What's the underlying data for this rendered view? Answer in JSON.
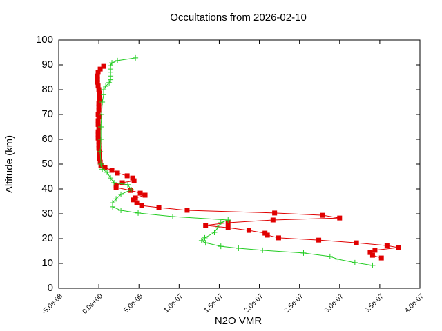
{
  "chart_data": {
    "type": "line",
    "title": "Occultations from 2026-02-10",
    "x_label": "N2O VMR",
    "y_label": "Altitude (km)",
    "xlim": [
      -5e-08,
      4e-07
    ],
    "xticks": [
      {
        "value": -5e-08,
        "label": "-5.0e-08"
      },
      {
        "value": 0,
        "label": "0.0e+00"
      },
      {
        "value": 5e-08,
        "label": "5.0e-08"
      },
      {
        "value": 1e-07,
        "label": "1.0e-07"
      },
      {
        "value": 1.5e-07,
        "label": "1.5e-07"
      },
      {
        "value": 2e-07,
        "label": "2.0e-07"
      },
      {
        "value": 2.5e-07,
        "label": "2.5e-07"
      },
      {
        "value": 3e-07,
        "label": "3.0e-07"
      },
      {
        "value": 3.5e-07,
        "label": "3.5e-07"
      },
      {
        "value": 4e-07,
        "label": "4.0e-07"
      }
    ],
    "ylim": [
      0,
      100
    ],
    "yticks": [
      0,
      10,
      20,
      30,
      40,
      50,
      60,
      70,
      80,
      90,
      100
    ],
    "grid": false,
    "series": [
      {
        "color": "#e00000",
        "marker": "square",
        "x": [
          6e-09,
          1.7e-09,
          -9e-10,
          -1.7e-09,
          -1.7e-09,
          -1.7e-09,
          -9e-10,
          0,
          9e-10,
          9e-10,
          9e-10,
          0,
          0,
          0,
          -9e-10,
          0,
          -9e-10,
          -9e-10,
          0,
          -9e-10,
          -9e-10,
          -9e-10,
          0,
          0,
          0,
          9e-10,
          9e-10,
          9e-10,
          1.7e-09,
          2.6e-09,
          7.7e-09,
          1.63e-08,
          2.32e-08,
          3.53e-08,
          4.21e-08,
          4.39e-08,
          2.92e-08,
          2.15e-08,
          2.15e-08,
          3.96e-08,
          5.16e-08,
          5.76e-08,
          4.56e-08,
          4.3e-08,
          4.73e-08,
          5.33e-08,
          7.48e-08,
          1.1e-07,
          2.19e-07,
          2.79e-07,
          3e-07,
          2.17e-07,
          1.61e-07,
          1.33e-07,
          1.61e-07,
          1.87e-07,
          2.07e-07,
          2.1e-07,
          2.24e-07,
          2.74e-07,
          3.21e-07,
          3.59e-07,
          3.73e-07,
          3.44e-07,
          3.38e-07,
          3.41e-07,
          3.52e-07
        ],
        "values": [
          89.4,
          88.3,
          87.0,
          85.5,
          84.0,
          83.0,
          81.5,
          80.0,
          78.6,
          77.0,
          76.0,
          74.5,
          73.0,
          71.7,
          70.0,
          69.0,
          67.5,
          66.0,
          64.7,
          63.0,
          62.0,
          60.5,
          59.0,
          57.8,
          56.4,
          55.0,
          53.6,
          52.2,
          50.8,
          49.4,
          48.6,
          47.5,
          46.4,
          45.3,
          44.4,
          43.3,
          42.5,
          41.4,
          40.6,
          39.4,
          38.3,
          37.5,
          36.4,
          35.6,
          34.4,
          33.3,
          32.5,
          31.4,
          30.3,
          29.4,
          28.3,
          27.5,
          26.4,
          25.3,
          24.4,
          23.3,
          22.2,
          21.4,
          20.3,
          19.4,
          18.3,
          17.2,
          16.4,
          15.3,
          14.4,
          13.3,
          12.2
        ]
      },
      {
        "color": "#22cc22",
        "marker": "plus",
        "x": [
          4.56e-08,
          2.32e-08,
          1.63e-08,
          1.46e-08,
          1.46e-08,
          1.46e-08,
          1.46e-08,
          1.46e-08,
          1.29e-08,
          8.6e-09,
          6e-09,
          6e-09,
          4.3e-09,
          3.4e-09,
          2.6e-09,
          2.6e-09,
          1.7e-09,
          2.6e-09,
          4.3e-09,
          1.03e-08,
          1.46e-08,
          1.89e-08,
          3.61e-08,
          4.04e-08,
          2.75e-08,
          2.15e-08,
          1.72e-08,
          1.72e-08,
          2.75e-08,
          4.9e-08,
          9.2e-08,
          1.61e-07,
          1.52e-07,
          1.48e-07,
          1.44e-07,
          1.32e-07,
          1.28e-07,
          1.33e-07,
          1.52e-07,
          1.74e-07,
          2.04e-07,
          2.55e-07,
          2.88e-07,
          2.98e-07,
          3.19e-07,
          3.41e-07
        ],
        "values": [
          92.8,
          91.7,
          90.8,
          89.7,
          88.3,
          87.0,
          85.5,
          84.0,
          82.8,
          81.4,
          80.0,
          78.0,
          75.0,
          70.0,
          65.0,
          60.0,
          55.0,
          50.0,
          48.0,
          46.7,
          44.4,
          42.5,
          41.7,
          39.7,
          37.8,
          36.0,
          34.4,
          32.8,
          31.4,
          30.3,
          28.9,
          27.5,
          26.4,
          24.4,
          22.5,
          20.3,
          19.2,
          18.3,
          16.9,
          16.1,
          15.3,
          14.2,
          12.8,
          11.7,
          10.3,
          9.2
        ]
      }
    ]
  }
}
